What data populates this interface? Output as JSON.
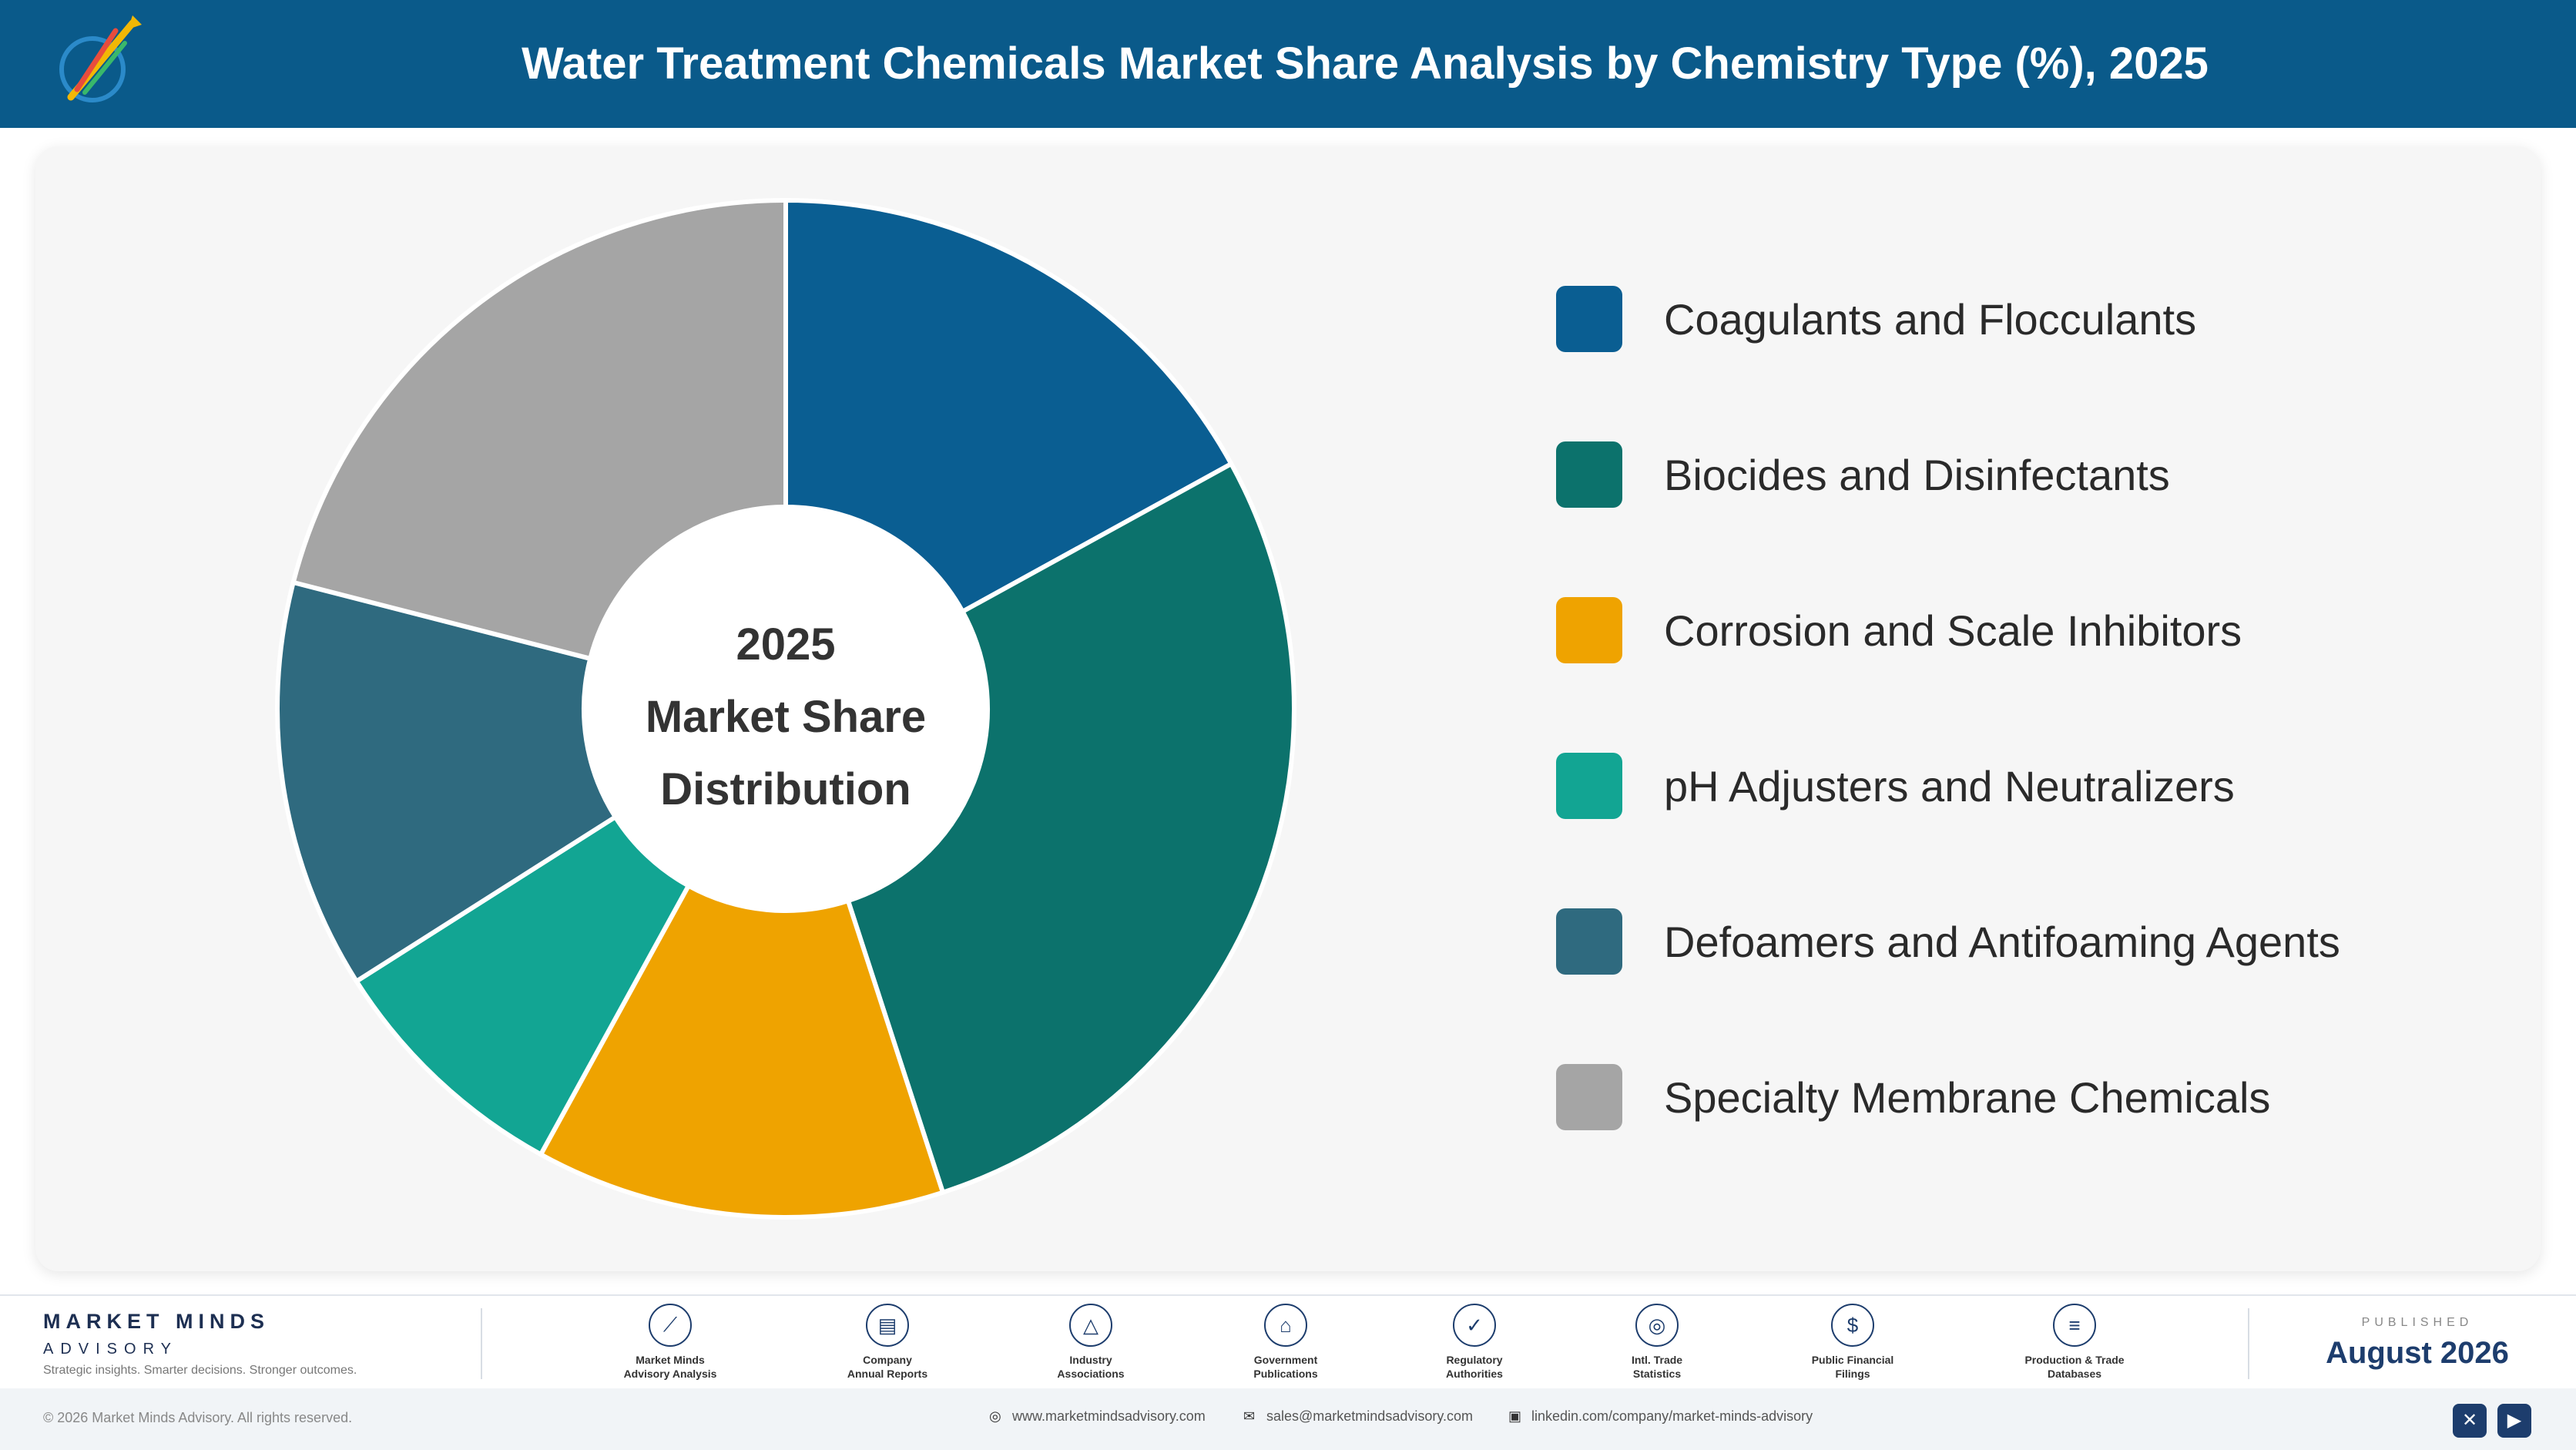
{
  "header": {
    "title": "Water Treatment Chemicals Market Share Analysis by Chemistry Type (%), 2025"
  },
  "center_label": {
    "line1": "2025",
    "line2": "Market Share",
    "line3": "Distribution"
  },
  "chart_data": {
    "type": "pie",
    "subtype": "donut",
    "title": "Water Treatment Chemicals Market Share Analysis by Chemistry Type (%), 2025",
    "categories": [
      "Coagulants and Flocculants",
      "Biocides and Disinfectants",
      "Corrosion and Scale Inhibitors",
      "pH Adjusters and Neutralizers",
      "Defoamers and Antifoaming Agents",
      "Specialty Membrane Chemicals"
    ],
    "values": [
      17,
      28,
      13,
      8,
      13,
      21
    ],
    "colors": [
      "#0a5e92",
      "#0c726c",
      "#efa300",
      "#12a593",
      "#2f6a7f",
      "#a5a5a5"
    ],
    "legend": "right"
  },
  "footer": {
    "brand_name": "MARKET MINDS",
    "brand_sub": "ADVISORY",
    "brand_tagline": "Strategic insights. Smarter decisions. Stronger outcomes.",
    "sources": [
      {
        "line1": "Market Minds",
        "line2": "Advisory Analysis",
        "icon": "chart-line-icon"
      },
      {
        "line1": "Company",
        "line2": "Annual Reports",
        "icon": "document-icon"
      },
      {
        "line1": "Industry",
        "line2": "Associations",
        "icon": "network-icon"
      },
      {
        "line1": "Government",
        "line2": "Publications",
        "icon": "government-building-icon"
      },
      {
        "line1": "Regulatory",
        "line2": "Authorities",
        "icon": "shield-check-icon"
      },
      {
        "line1": "Intl. Trade",
        "line2": "Statistics",
        "icon": "globe-icon"
      },
      {
        "line1": "Public Financial",
        "line2": "Filings",
        "icon": "dollar-icon"
      },
      {
        "line1": "Production & Trade",
        "line2": "Databases",
        "icon": "database-icon"
      }
    ],
    "published_kicker": "PUBLISHED",
    "published_date": "August 2026"
  },
  "bottom": {
    "copyright": "© 2026 Market Minds Advisory. All rights reserved.",
    "website": "www.marketmindsadvisory.com",
    "email": "sales@marketmindsadvisory.com",
    "linkedin": "linkedin.com/company/market-minds-advisory"
  }
}
